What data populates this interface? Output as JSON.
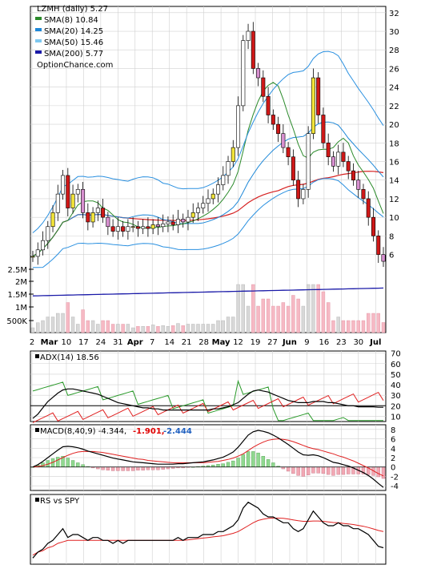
{
  "chart_data": [
    {
      "type": "candlestick",
      "panel": "price",
      "legend": [
        {
          "label": "LZMH (daily) 5.27",
          "color": "#000000"
        },
        {
          "label": "SMA(8) 10.84",
          "color": "#2a8a2a"
        },
        {
          "label": "SMA(20) 14.25",
          "color": "#1e88d8"
        },
        {
          "label": "SMA(50) 15.46",
          "color": "#7ec8f0"
        },
        {
          "label": "SMA(200) 5.77",
          "color": "#1a1aa8"
        },
        {
          "label": "OptionChance.com",
          "color": "#000000"
        }
      ],
      "y_ticks": [
        6,
        8,
        10,
        12,
        14,
        16,
        18,
        20,
        22,
        24,
        26,
        28,
        30,
        32
      ],
      "ylim": [
        4.5,
        32.5
      ],
      "volume_ticks": [
        "500K",
        "1M",
        "1.5M",
        "2M",
        "2.5M"
      ],
      "x_tick_labels": [
        {
          "label": "2",
          "bold": false
        },
        {
          "label": "Mar",
          "bold": true
        },
        {
          "label": "10",
          "bold": false
        },
        {
          "label": "17",
          "bold": false
        },
        {
          "label": "24",
          "bold": false
        },
        {
          "label": "31",
          "bold": false
        },
        {
          "label": "Apr",
          "bold": true
        },
        {
          "label": "7",
          "bold": false
        },
        {
          "label": "14",
          "bold": false
        },
        {
          "label": "21",
          "bold": false
        },
        {
          "label": "28",
          "bold": false
        },
        {
          "label": "May",
          "bold": true
        },
        {
          "label": "12",
          "bold": false
        },
        {
          "label": "19",
          "bold": false
        },
        {
          "label": "27",
          "bold": false
        },
        {
          "label": "Jun",
          "bold": true
        },
        {
          "label": "9",
          "bold": false
        },
        {
          "label": "16",
          "bold": false
        },
        {
          "label": "23",
          "bold": false
        },
        {
          "label": "30",
          "bold": false
        },
        {
          "label": "Jul",
          "bold": true
        }
      ],
      "series": [
        {
          "name": "LZMH",
          "close": [
            5.8,
            6.5,
            7.5,
            9.0,
            10.5,
            12.5,
            14.5,
            11.0,
            12.5,
            13.0,
            10.5,
            9.5,
            10.5,
            11.0,
            10.0,
            9.0,
            8.5,
            9.0,
            8.5,
            9.0,
            9.0,
            8.8,
            9.0,
            8.8,
            9.2,
            9.0,
            9.3,
            9.5,
            9.2,
            9.8,
            9.5,
            10.0,
            10.5,
            11.0,
            11.5,
            12.0,
            12.5,
            13.5,
            14.5,
            16.0,
            17.5,
            22.0,
            29.0,
            30.0,
            26.0,
            25.0,
            23.0,
            21.0,
            20.0,
            19.0,
            17.5,
            16.5,
            14.0,
            12.0,
            13.0,
            19.0,
            25.0,
            21.0,
            18.0,
            16.5,
            15.5,
            17.0,
            16.0,
            15.0,
            14.0,
            13.0,
            12.0,
            10.0,
            8.0,
            6.0,
            5.27
          ]
        }
      ],
      "volume_bars_note": "pink = down day, gray = up day"
    },
    {
      "type": "line",
      "panel": "adx",
      "legend": [
        {
          "label": "ADX(14) 18.56",
          "color": "#000000"
        }
      ],
      "y_ticks": [
        10,
        20,
        30,
        40,
        50,
        60,
        70
      ],
      "ylim": [
        5,
        72
      ],
      "series": [
        {
          "name": "ADX",
          "values": [
            8,
            12,
            18,
            24,
            28,
            32,
            35,
            36,
            36,
            35,
            34,
            33,
            32,
            31,
            29,
            27,
            25,
            23,
            22,
            21,
            20,
            19,
            18,
            18,
            17,
            17,
            16,
            16,
            16,
            16,
            16,
            16,
            16,
            16,
            16,
            16,
            17,
            17,
            18,
            19,
            21,
            23,
            27,
            31,
            34,
            35,
            34,
            33,
            31,
            29,
            27,
            25,
            24,
            23,
            23,
            23,
            24,
            24,
            24,
            23,
            23,
            22,
            21,
            20,
            20,
            19,
            19,
            19,
            19,
            18.56,
            18.56
          ]
        }
      ]
    },
    {
      "type": "line",
      "panel": "macd",
      "legend": [
        {
          "label": "MACD(8,40,9) -4.344,",
          "color": "#000000"
        },
        {
          "label": "-1.901,",
          "color": "#e00000"
        },
        {
          "label": "-2.444",
          "color": "#2060c0"
        }
      ],
      "y_ticks": [
        -4,
        -2,
        0,
        2,
        4,
        6,
        8
      ],
      "ylim": [
        -5,
        9
      ],
      "series": [
        {
          "name": "MACD",
          "values": [
            0,
            0.5,
            1.2,
            2.0,
            2.8,
            3.6,
            4.3,
            4.4,
            4.3,
            4.1,
            3.8,
            3.4,
            3.1,
            2.8,
            2.5,
            2.2,
            1.9,
            1.7,
            1.5,
            1.3,
            1.1,
            1.0,
            0.9,
            0.8,
            0.7,
            0.6,
            0.6,
            0.6,
            0.6,
            0.7,
            0.7,
            0.8,
            0.9,
            1.0,
            1.1,
            1.3,
            1.5,
            1.8,
            2.1,
            2.6,
            3.2,
            4.2,
            5.5,
            6.8,
            7.5,
            7.8,
            7.6,
            7.3,
            6.8,
            6.2,
            5.5,
            4.8,
            4.0,
            3.2,
            2.6,
            2.5,
            2.6,
            2.4,
            2.0,
            1.5,
            1.0,
            0.8,
            0.5,
            0.2,
            -0.2,
            -0.7,
            -1.2,
            -1.8,
            -2.6,
            -3.5,
            -4.344
          ]
        },
        {
          "name": "Signal",
          "values": [
            0,
            0.1,
            0.3,
            0.6,
            1.0,
            1.5,
            2.0,
            2.5,
            2.9,
            3.2,
            3.3,
            3.3,
            3.3,
            3.2,
            3.1,
            2.9,
            2.7,
            2.5,
            2.3,
            2.1,
            1.9,
            1.7,
            1.6,
            1.4,
            1.3,
            1.2,
            1.1,
            1.0,
            0.9,
            0.9,
            0.9,
            0.9,
            0.9,
            0.9,
            0.9,
            1.0,
            1.1,
            1.2,
            1.4,
            1.6,
            1.9,
            2.3,
            2.8,
            3.5,
            4.2,
            4.8,
            5.3,
            5.7,
            5.9,
            6.0,
            5.9,
            5.7,
            5.4,
            5.0,
            4.6,
            4.2,
            3.9,
            3.7,
            3.4,
            3.1,
            2.8,
            2.4,
            2.1,
            1.7,
            1.3,
            0.8,
            0.3,
            -0.2,
            -0.8,
            -1.4,
            -1.901
          ]
        }
      ]
    },
    {
      "type": "line",
      "panel": "rs-vs-spy",
      "legend": [
        {
          "label": "RS vs SPY",
          "color": "#000000"
        }
      ],
      "series": [
        {
          "name": "RS",
          "values": [
            1,
            3,
            4,
            6,
            7,
            9,
            11,
            8,
            9,
            9,
            8,
            7,
            8,
            8,
            7,
            7,
            6,
            7,
            6,
            7,
            7,
            7,
            7,
            7,
            7,
            7,
            7,
            7,
            7,
            8,
            7,
            8,
            8,
            8,
            9,
            9,
            9,
            10,
            10,
            11,
            12,
            14,
            18,
            20,
            19,
            18,
            16,
            15,
            15,
            14,
            13,
            13,
            11,
            10,
            11,
            14,
            17,
            15,
            13,
            12,
            12,
            13,
            12,
            12,
            11,
            11,
            10,
            9,
            7,
            5,
            4.5
          ]
        },
        {
          "name": "RS average",
          "values": [
            2,
            3,
            3.5,
            4.5,
            5,
            6,
            6.5,
            7,
            7,
            7,
            7,
            7,
            7,
            7,
            7,
            7,
            7,
            7,
            7,
            7,
            7,
            7,
            7,
            7,
            7,
            7,
            7,
            7,
            7,
            7,
            7,
            7.2,
            7.4,
            7.6,
            7.8,
            8,
            8.2,
            8.4,
            8.6,
            9,
            9.4,
            10,
            11,
            12,
            13,
            13.8,
            14.2,
            14.5,
            14.6,
            14.6,
            14.5,
            14.3,
            14.0,
            13.7,
            13.5,
            13.5,
            13.6,
            13.6,
            13.5,
            13.3,
            13.1,
            13.0,
            12.8,
            12.6,
            12.4,
            12.1,
            11.8,
            11.4,
            10.9,
            10.4,
            10.0
          ]
        }
      ]
    }
  ]
}
